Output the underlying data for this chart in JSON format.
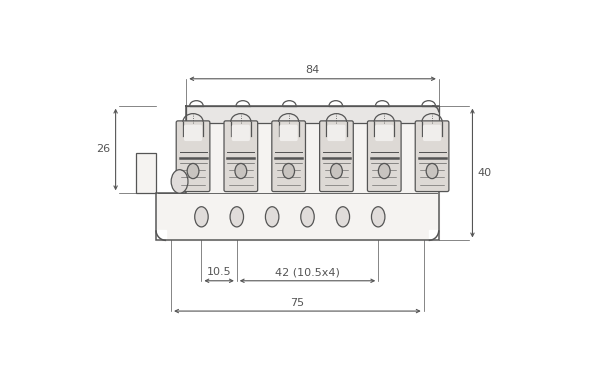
{
  "bg_color": "#ffffff",
  "line_color": "#555555",
  "dim_color": "#555555",
  "dim_84": "84",
  "dim_26": "26",
  "dim_40": "40",
  "dim_10p5": "10.5",
  "dim_42": "42 (10.5x4)",
  "dim_75": "75",
  "n_saddles": 6,
  "figsize": [
    6.0,
    3.76
  ],
  "dpi": 100
}
